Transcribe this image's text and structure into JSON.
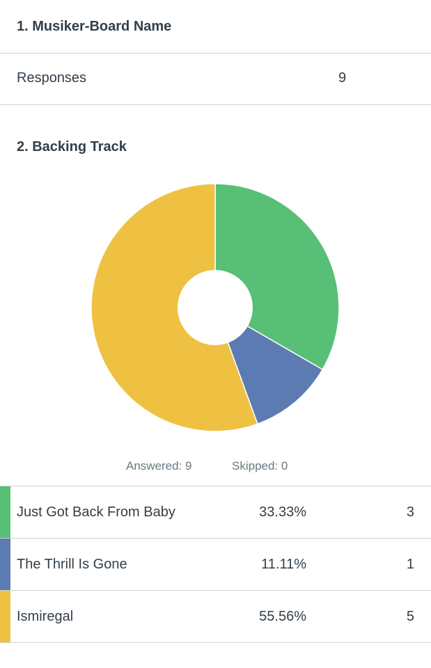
{
  "question1": {
    "title": "1. Musiker-Board Name",
    "responses_label": "Responses",
    "responses_value": "9"
  },
  "question2": {
    "title": "2. Backing Track",
    "answered": "Answered: 9",
    "skipped": "Skipped: 0"
  },
  "chart_data": {
    "type": "pie",
    "style": "donut",
    "categories": [
      "Just Got Back From Baby",
      "The Thrill Is Gone",
      "Ismiregal"
    ],
    "values": [
      33.33,
      11.11,
      55.56
    ],
    "counts": [
      3,
      1,
      5
    ],
    "colors": [
      "#57bf76",
      "#5b7bb2",
      "#efc142"
    ],
    "title": "2. Backing Track",
    "legend": "table-below"
  },
  "answers": [
    {
      "label": "Just Got Back From Baby",
      "percent": "33.33%",
      "count": "3",
      "color": "#57bf76"
    },
    {
      "label": "The Thrill Is Gone",
      "percent": "11.11%",
      "count": "1",
      "color": "#5b7bb2"
    },
    {
      "label": "Ismiregal",
      "percent": "55.56%",
      "count": "5",
      "color": "#efc142"
    }
  ]
}
